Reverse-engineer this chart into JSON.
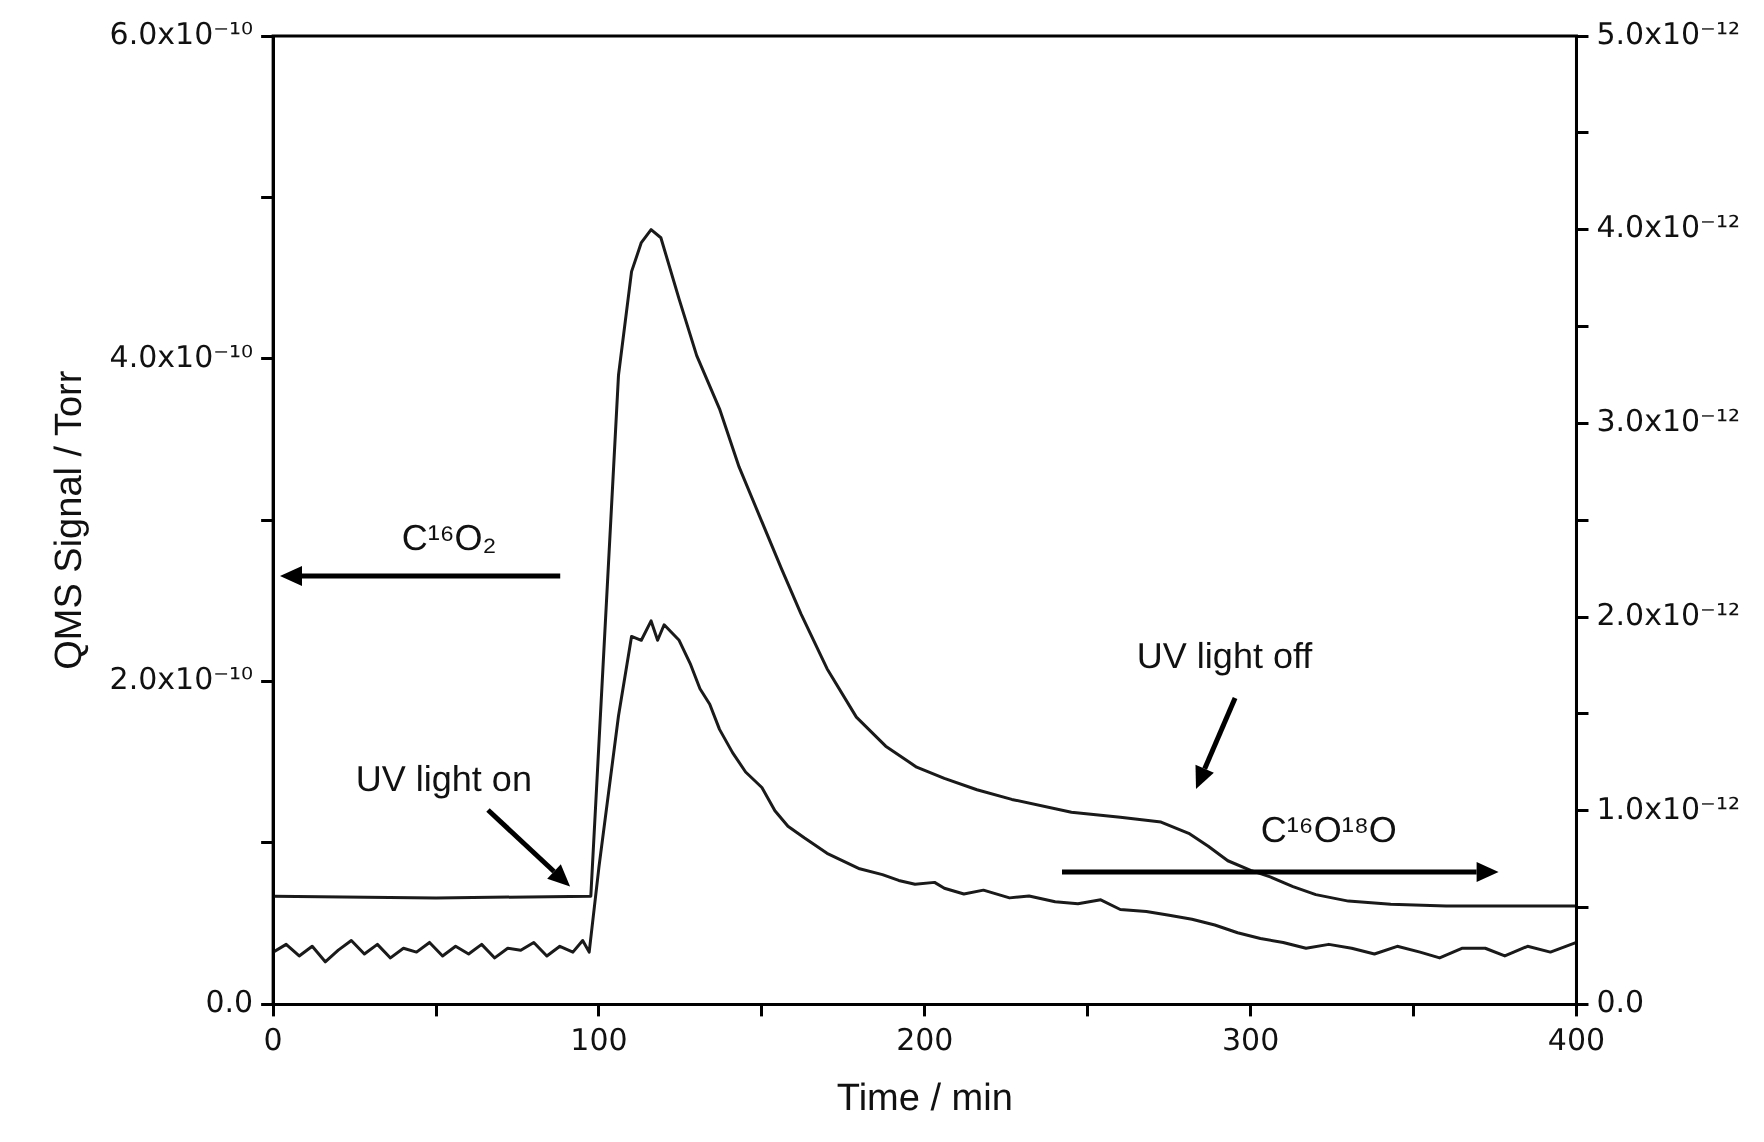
{
  "chart_data": {
    "type": "line",
    "xlabel": "Time / min",
    "ylabel": "QMS Signal / Torr",
    "xlim": [
      0,
      400
    ],
    "xticks": [
      0,
      {
        "value": 50,
        "label": null
      },
      100,
      {
        "value": 150,
        "label": null
      },
      200,
      {
        "value": 250,
        "label": null
      },
      300,
      {
        "value": 350,
        "label": null
      },
      400
    ],
    "ylim": [
      0,
      6e-10
    ],
    "yticks": [
      {
        "value": 0,
        "label": "0.0"
      },
      {
        "value": 1e-10,
        "label": null
      },
      {
        "value": 2e-10,
        "label": "2.0x10⁻¹⁰"
      },
      {
        "value": 3e-10,
        "label": null
      },
      {
        "value": 4e-10,
        "label": "4.0x10⁻¹⁰"
      },
      {
        "value": 5e-10,
        "label": null
      },
      {
        "value": 6e-10,
        "label": "6.0x10⁻¹⁰"
      }
    ],
    "y2lim": [
      0,
      5e-12
    ],
    "y2ticks": [
      {
        "value": 0,
        "label": "0.0"
      },
      {
        "value": 5e-13,
        "label": null
      },
      {
        "value": 1e-12,
        "label": "1.0x10⁻¹²"
      },
      {
        "value": 1.5e-12,
        "label": null
      },
      {
        "value": 2e-12,
        "label": "2.0x10⁻¹²"
      },
      {
        "value": 2.5e-12,
        "label": null
      },
      {
        "value": 3e-12,
        "label": "3.0x10⁻¹²"
      },
      {
        "value": 3.5e-12,
        "label": null
      },
      {
        "value": 4e-12,
        "label": "4.0x10⁻¹²"
      },
      {
        "value": 4.5e-12,
        "label": null
      },
      {
        "value": 5e-12,
        "label": "5.0x10⁻¹²"
      }
    ],
    "grid": false,
    "legend": false,
    "marker": "none",
    "line_style": "solid",
    "series": [
      {
        "color": "#1a1a1a",
        "x": [
          0,
          50,
          97.5,
          106,
          110,
          113,
          116,
          119,
          124.6,
          130,
          137,
          143,
          149.6,
          156,
          162,
          170,
          179,
          188,
          197.5,
          206,
          216,
          226.7,
          245,
          260,
          272.5,
          281,
          287,
          293,
          300,
          306,
          313,
          320,
          330,
          343,
          360,
          380,
          400
        ],
        "values": [
          6.7e-11,
          6.6e-11,
          6.7e-11,
          3.9e-10,
          4.54e-10,
          4.72e-10,
          4.8e-10,
          4.75e-10,
          4.37e-10,
          4.02e-10,
          3.69e-10,
          3.33e-10,
          3.01e-10,
          2.7e-10,
          2.42e-10,
          2.08e-10,
          1.78e-10,
          1.6e-10,
          1.47e-10,
          1.4e-10,
          1.33e-10,
          1.27e-10,
          1.19e-10,
          1.16e-10,
          1.13e-10,
          1.06e-10,
          9.8e-11,
          8.9e-11,
          8.3e-11,
          7.9e-11,
          7.3e-11,
          6.8e-11,
          6.4e-11,
          6.2e-11,
          6.1e-11,
          6.1e-11,
          6.1e-11
        ]
      },
      {
        "color": "#1a1a1a",
        "axis": "y2",
        "x": [
          0,
          4,
          8,
          12,
          16,
          20,
          24,
          28,
          32,
          36,
          40,
          44,
          48,
          52,
          56,
          60,
          64,
          68,
          72,
          76,
          80,
          84,
          88,
          92,
          95,
          97,
          100,
          106,
          110,
          113,
          116,
          118,
          120,
          124.6,
          128,
          131,
          134,
          137,
          141,
          145,
          150,
          154,
          158,
          163,
          170,
          175,
          180,
          187,
          192,
          197,
          203,
          206,
          212,
          218,
          226,
          232,
          240,
          247,
          254,
          260,
          268,
          275,
          282,
          289,
          296,
          303,
          310,
          317,
          324,
          331,
          338,
          345,
          352,
          358,
          365,
          372,
          378,
          385,
          392,
          400
        ],
        "values": [
          2.7e-13,
          3.1e-13,
          2.5e-13,
          3e-13,
          2.2e-13,
          2.8e-13,
          3.3e-13,
          2.6e-13,
          3.1e-13,
          2.4e-13,
          2.9e-13,
          2.7e-13,
          3.2e-13,
          2.5e-13,
          3e-13,
          2.6e-13,
          3.1e-13,
          2.4e-13,
          2.9e-13,
          2.8e-13,
          3.2e-13,
          2.5e-13,
          3e-13,
          2.7e-13,
          3.3e-13,
          2.7e-13,
          7.1e-13,
          1.49e-12,
          1.9e-12,
          1.88e-12,
          1.98e-12,
          1.88e-12,
          1.96e-12,
          1.88e-12,
          1.76e-12,
          1.63e-12,
          1.55e-12,
          1.42e-12,
          1.3e-12,
          1.2e-12,
          1.12e-12,
          1e-12,
          9.2e-13,
          8.6e-13,
          7.8e-13,
          7.4e-13,
          7e-13,
          6.7e-13,
          6.4e-13,
          6.2e-13,
          6.3e-13,
          6e-13,
          5.7e-13,
          5.9e-13,
          5.5e-13,
          5.6e-13,
          5.3e-13,
          5.2e-13,
          5.4e-13,
          4.9e-13,
          4.8e-13,
          4.6e-13,
          4.4e-13,
          4.1e-13,
          3.7e-13,
          3.4e-13,
          3.2e-13,
          2.9e-13,
          3.1e-13,
          2.9e-13,
          2.6e-13,
          3e-13,
          2.7e-13,
          2.4e-13,
          2.9e-13,
          2.9e-13,
          2.5e-13,
          3e-13,
          2.7e-13,
          3.2e-13
        ]
      }
    ],
    "annotations": [
      "C¹⁶O₂",
      "UV light on",
      "UV light off",
      "C¹⁶O¹⁸O"
    ]
  }
}
